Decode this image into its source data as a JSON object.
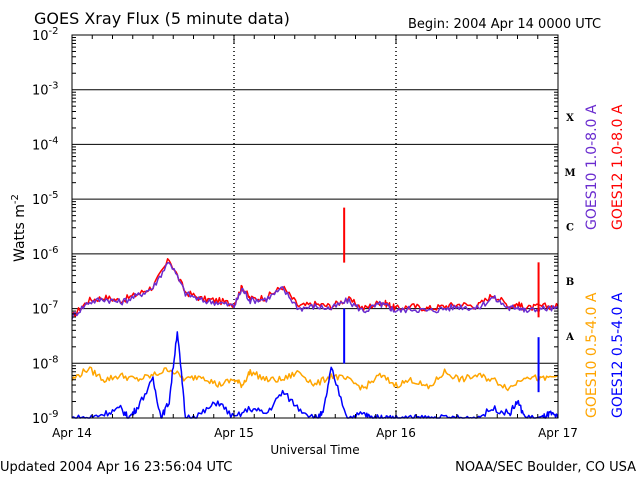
{
  "header": {
    "title": "GOES Xray Flux (5 minute data)",
    "begin": "Begin:  2004 Apr 14 0000 UTC"
  },
  "footer": {
    "updated": "Updated 2004 Apr 16 23:56:04 UTC",
    "source": "NOAA/SEC Boulder, CO USA"
  },
  "chart_data": {
    "type": "line",
    "title": "GOES Xray Flux (5 minute data)",
    "xlabel": "Universal Time",
    "ylabel_base": "Watts m",
    "ylabel_exp": "-2",
    "yscale": "log",
    "ylim": [
      1e-09,
      0.01
    ],
    "xlim": [
      "2004-04-14 00:00",
      "2004-04-17 00:00"
    ],
    "grid": true,
    "x_ticks": [
      "Apr 14",
      "Apr 15",
      "Apr 16",
      "Apr 17"
    ],
    "y_ticks": [
      {
        "base": "10",
        "exp": "-2"
      },
      {
        "base": "10",
        "exp": "-3"
      },
      {
        "base": "10",
        "exp": "-4"
      },
      {
        "base": "10",
        "exp": "-5"
      },
      {
        "base": "10",
        "exp": "-6"
      },
      {
        "base": "10",
        "exp": "-7"
      },
      {
        "base": "10",
        "exp": "-8"
      },
      {
        "base": "10",
        "exp": "-9"
      }
    ],
    "flare_classes": [
      "X",
      "M",
      "C",
      "B",
      "A"
    ],
    "legend": [
      {
        "label": "GOES10 1.0-8.0 A",
        "color": "#6a2ccf"
      },
      {
        "label": "GOES12 1.0-8.0 A",
        "color": "#ff0000"
      },
      {
        "label": "GOES10 0.5-4.0 A",
        "color": "#ffa500"
      },
      {
        "label": "GOES12 0.5-4.0 A",
        "color": "#0000ff"
      }
    ],
    "series": [
      {
        "name": "GOES12 1.0-8.0 A",
        "color": "#ff0000",
        "x": [
          0,
          0.1,
          0.2,
          0.3,
          0.4,
          0.5,
          0.6,
          0.7,
          0.8,
          0.9,
          1.0,
          1.05,
          1.1,
          1.2,
          1.3,
          1.4,
          1.5,
          1.6,
          1.7,
          1.8,
          1.9,
          1.95,
          2.0,
          2.1,
          2.2,
          2.3,
          2.4,
          2.5,
          2.6,
          2.7,
          2.75,
          2.8,
          2.9,
          3.0
        ],
        "y": [
          7e-08,
          1.4e-07,
          1.6e-07,
          1.4e-07,
          1.8e-07,
          2.5e-07,
          8e-07,
          2e-07,
          1.5e-07,
          1.4e-07,
          1.2e-07,
          2.5e-07,
          1.5e-07,
          1.6e-07,
          2.5e-07,
          1.1e-07,
          1.2e-07,
          1.1e-07,
          1.5e-07,
          1e-07,
          1.3e-07,
          1.2e-07,
          1e-07,
          1.1e-07,
          1e-07,
          1.1e-07,
          1.2e-07,
          1.1e-07,
          1.8e-07,
          1.1e-07,
          1.2e-07,
          1e-07,
          1.1e-07,
          1.1e-07
        ]
      },
      {
        "name": "GOES10 1.0-8.0 A",
        "color": "#6a2ccf",
        "x": [
          0,
          0.1,
          0.2,
          0.3,
          0.4,
          0.5,
          0.6,
          0.7,
          0.8,
          0.9,
          1.0,
          1.05,
          1.1,
          1.2,
          1.3,
          1.4,
          1.5,
          1.6,
          1.7,
          1.8,
          1.9,
          1.95,
          2.0,
          2.1,
          2.2,
          2.3,
          2.4,
          2.5,
          2.6,
          2.7,
          2.75,
          2.8,
          2.9,
          3.0
        ],
        "y": [
          7e-08,
          1.3e-07,
          1.5e-07,
          1.3e-07,
          1.7e-07,
          2.4e-07,
          7.5e-07,
          1.9e-07,
          1.4e-07,
          1.3e-07,
          1.1e-07,
          2.3e-07,
          1.4e-07,
          1.5e-07,
          2.3e-07,
          1e-07,
          1.1e-07,
          1e-07,
          1.4e-07,
          9e-08,
          1.2e-07,
          1.1e-07,
          9e-08,
          1e-07,
          9e-08,
          1e-07,
          1.1e-07,
          1e-07,
          1.6e-07,
          1e-07,
          1.1e-07,
          9e-08,
          1e-07,
          1e-07
        ]
      },
      {
        "name": "GOES10 0.5-4.0 A",
        "color": "#ffa500",
        "x": [
          0,
          0.1,
          0.2,
          0.3,
          0.4,
          0.5,
          0.6,
          0.7,
          0.8,
          0.9,
          1.0,
          1.05,
          1.1,
          1.2,
          1.3,
          1.4,
          1.5,
          1.6,
          1.7,
          1.8,
          1.9,
          2.0,
          2.1,
          2.2,
          2.3,
          2.4,
          2.5,
          2.6,
          2.7,
          2.8,
          2.9,
          3.0
        ],
        "y": [
          5e-09,
          8e-09,
          5e-09,
          6e-09,
          5e-09,
          6e-09,
          8e-09,
          5e-09,
          6e-09,
          4e-09,
          5e-09,
          4e-09,
          7e-09,
          5e-09,
          5e-09,
          7e-09,
          4e-09,
          6e-09,
          5e-09,
          3.5e-09,
          6e-09,
          4e-09,
          5e-09,
          3.5e-09,
          7e-09,
          5e-09,
          6e-09,
          5e-09,
          3.5e-09,
          6e-09,
          5e-09,
          6e-09
        ]
      },
      {
        "name": "GOES12 0.5-4.0 A",
        "color": "#0000ff",
        "x": [
          0,
          0.1,
          0.2,
          0.3,
          0.35,
          0.4,
          0.5,
          0.55,
          0.6,
          0.65,
          0.7,
          0.8,
          0.9,
          1.0,
          1.1,
          1.2,
          1.3,
          1.4,
          1.5,
          1.55,
          1.6,
          1.7,
          1.8,
          1.85,
          1.9,
          1.95,
          2.0,
          2.1,
          2.2,
          2.3,
          2.4,
          2.5,
          2.6,
          2.7,
          2.75,
          2.8,
          2.9,
          2.95,
          3.0
        ],
        "y": [
          1e-09,
          1e-09,
          1.2e-09,
          1.5e-09,
          1e-09,
          1.5e-09,
          5e-09,
          1e-09,
          2e-09,
          4e-08,
          1e-09,
          1.2e-09,
          2e-09,
          1e-09,
          1.5e-09,
          1.2e-09,
          3e-09,
          1.5e-09,
          1e-09,
          1.2e-09,
          8e-09,
          1e-09,
          1.2e-09,
          1e-09,
          1e-09,
          1e-09,
          1e-09,
          1e-09,
          1e-09,
          1e-09,
          1e-09,
          1e-09,
          1.5e-09,
          1.2e-09,
          2e-09,
          1e-09,
          1e-09,
          1.2e-09,
          1e-09
        ]
      }
    ],
    "peaks": [
      {
        "series": "GOES12 1.0-8.0 A",
        "x": 1.68,
        "y": 7e-06
      },
      {
        "series": "GOES12 0.5-4.0 A",
        "x": 1.68,
        "y": 1e-07
      },
      {
        "series": "GOES12 1.0-8.0 A",
        "x": 2.88,
        "y": 7e-07
      },
      {
        "series": "GOES12 0.5-4.0 A",
        "x": 2.88,
        "y": 3e-08
      }
    ]
  }
}
